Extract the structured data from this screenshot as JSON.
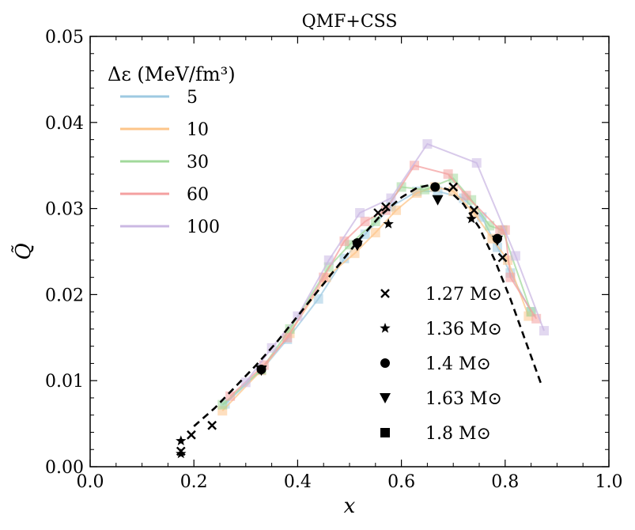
{
  "chart_data": {
    "type": "scatter",
    "title": "QMF+CSS",
    "xlabel": "x",
    "ylabel": "Q̃",
    "xlim": [
      0.0,
      1.0
    ],
    "ylim": [
      0.0,
      0.05
    ],
    "xticks": [
      "0.0",
      "0.2",
      "0.4",
      "0.6",
      "0.8",
      "1.0"
    ],
    "yticks": [
      "0.00",
      "0.01",
      "0.02",
      "0.03",
      "0.04",
      "0.05"
    ],
    "legend_title": "Δε (MeV/fm³)",
    "legend_position": "top-left",
    "series": [
      {
        "name": "5",
        "color": "#9ecae1",
        "x": [
          0.26,
          0.33,
          0.38,
          0.44,
          0.49,
          0.53,
          0.58,
          0.63,
          0.67,
          0.72,
          0.755,
          0.785,
          0.81,
          0.85
        ],
        "y": [
          0.0073,
          0.0112,
          0.0148,
          0.0195,
          0.0242,
          0.027,
          0.0302,
          0.032,
          0.032,
          0.0312,
          0.029,
          0.0255,
          0.0225,
          0.018
        ]
      },
      {
        "name": "10",
        "color": "#fdc58a",
        "x": [
          0.255,
          0.33,
          0.385,
          0.455,
          0.51,
          0.55,
          0.59,
          0.63,
          0.665,
          0.7,
          0.74,
          0.775,
          0.805,
          0.845
        ],
        "y": [
          0.0065,
          0.0112,
          0.0155,
          0.022,
          0.0248,
          0.0272,
          0.0298,
          0.0318,
          0.0325,
          0.032,
          0.0295,
          0.0265,
          0.024,
          0.0175
        ]
      },
      {
        "name": "30",
        "color": "#a1d99b",
        "x": [
          0.255,
          0.33,
          0.385,
          0.46,
          0.5,
          0.55,
          0.6,
          0.645,
          0.7,
          0.735,
          0.77,
          0.795,
          0.85
        ],
        "y": [
          0.0072,
          0.0113,
          0.016,
          0.0232,
          0.0258,
          0.0285,
          0.0325,
          0.0322,
          0.0335,
          0.031,
          0.028,
          0.0275,
          0.018
        ]
      },
      {
        "name": "60",
        "color": "#f4a0a0",
        "x": [
          0.27,
          0.335,
          0.38,
          0.45,
          0.49,
          0.53,
          0.57,
          0.625,
          0.69,
          0.725,
          0.79,
          0.8,
          0.81,
          0.86
        ],
        "y": [
          0.0082,
          0.0118,
          0.015,
          0.022,
          0.0262,
          0.0285,
          0.0298,
          0.035,
          0.034,
          0.0315,
          0.0275,
          0.0275,
          0.022,
          0.0172
        ]
      },
      {
        "name": "100",
        "color": "#cbb8e3",
        "x": [
          0.3,
          0.35,
          0.4,
          0.46,
          0.52,
          0.58,
          0.65,
          0.745,
          0.82,
          0.875
        ],
        "y": [
          0.0098,
          0.0138,
          0.0175,
          0.024,
          0.0295,
          0.0312,
          0.0375,
          0.0353,
          0.0245,
          0.0158
        ]
      }
    ],
    "mass_markers": [
      {
        "label": "1.27 M⊙",
        "marker": "x",
        "x": [
          0.175,
          0.195,
          0.235,
          0.555,
          0.57,
          0.7,
          0.74,
          0.795
        ],
        "y": [
          0.0018,
          0.0037,
          0.0048,
          0.0295,
          0.0302,
          0.0325,
          0.0298,
          0.0243
        ]
      },
      {
        "label": "1.36 M⊙",
        "marker": "star",
        "x": [
          0.175,
          0.175,
          0.575,
          0.735
        ],
        "y": [
          0.0015,
          0.003,
          0.0282,
          0.0288
        ]
      },
      {
        "label": "1.4 M⊙",
        "marker": "circle",
        "x": [
          0.33,
          0.515,
          0.665,
          0.785
        ],
        "y": [
          0.0113,
          0.026,
          0.0325,
          0.0265
        ]
      },
      {
        "label": "1.63 M⊙",
        "marker": "triangle-down",
        "x": [
          0.33,
          0.515,
          0.67,
          0.785
        ],
        "y": [
          0.0112,
          0.0257,
          0.031,
          0.0263
        ]
      },
      {
        "label": "1.8 M⊙",
        "marker": "square",
        "x": [],
        "y": []
      }
    ],
    "fit_curve": {
      "style": "dashed",
      "color": "#000000",
      "x": [
        0.2,
        0.24,
        0.28,
        0.32,
        0.36,
        0.4,
        0.44,
        0.48,
        0.52,
        0.56,
        0.6,
        0.63,
        0.66,
        0.69,
        0.72,
        0.75,
        0.78,
        0.81,
        0.84,
        0.87
      ],
      "y": [
        0.0047,
        0.0068,
        0.0093,
        0.0118,
        0.0145,
        0.0175,
        0.0205,
        0.0235,
        0.0265,
        0.0292,
        0.0313,
        0.0324,
        0.0328,
        0.0322,
        0.0305,
        0.0278,
        0.024,
        0.0195,
        0.0145,
        0.0095
      ]
    }
  }
}
